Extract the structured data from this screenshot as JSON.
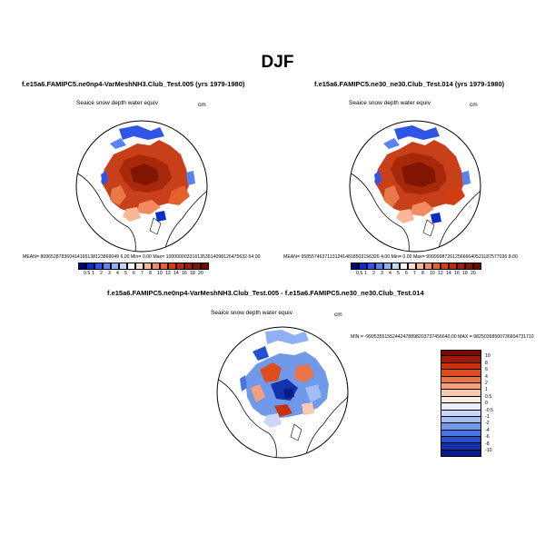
{
  "title": "DJF",
  "panel1": {
    "title": "f.e15a6.FAMIPC5.ne0np4-VarMeshNH3.Club_Test.005 (yrs 1979-1980)",
    "var_label": "Seaice snow depth water equiv",
    "units": "cm",
    "stats": "MEAN= 809652878360414165138123869049 6.00  Min=    0.00  Max= 1000000033161353514098126475632 64.00"
  },
  "panel2": {
    "title": "f.e15a6.FAMIPC5.ne30_ne30.Club_Test.014 (yrs 1979-1980)",
    "var_label": "Seaice snow depth water equiv",
    "units": "cm",
    "stats": "MEAN= 958557463711312414818503156326 4.00  Min=    0.00  Max= 9999998726125666640521187577036 8.00"
  },
  "panel3": {
    "title": "f.e15a6.FAMIPC5.ne0np4-VarMeshNH3.Club_Test.005 - f.e15a6.FAMIPC5.ne30_ne30.Club_Test.014",
    "var_label": "Seaice snow depth water equiv",
    "units": "cm",
    "stats": "MIN = -99953551552442478898203737456640.00 MAX = 98250368500736604731710"
  },
  "abs_colorbar": {
    "labels": [
      "0.5",
      "1",
      "2",
      "3",
      "4",
      "5",
      "6",
      "7",
      "8",
      "10",
      "12",
      "14",
      "16",
      "18",
      "20"
    ],
    "colors": [
      "#00007f",
      "#0a2dc8",
      "#2f55e6",
      "#5a82f0",
      "#8fb0f5",
      "#c2d5fa",
      "#ffffff",
      "#fde0cf",
      "#f8b896",
      "#f28c60",
      "#e6602e",
      "#d43d12",
      "#b82c08",
      "#9c1e04",
      "#821402",
      "#6a0a00"
    ]
  },
  "diff_colorbar": {
    "labels": [
      "10",
      "8",
      "6",
      "4",
      "2",
      "1",
      "0.5",
      "0",
      "-0.5",
      "-1",
      "-2",
      "-4",
      "-6",
      "-8",
      "-10"
    ],
    "colors": [
      "#7a0a00",
      "#a21a04",
      "#c83010",
      "#de4d1e",
      "#ec7548",
      "#f4a07c",
      "#f9c8b0",
      "#fdebe0",
      "#e8eefa",
      "#c9d8f6",
      "#a1bdf2",
      "#7199ea",
      "#4a74e0",
      "#2650cf",
      "#1232ae",
      "#061c86"
    ]
  },
  "map_colors": {
    "land": "#ffffff",
    "coast": "#000000",
    "dark_red": "#a8280a",
    "red": "#c8401a",
    "orange": "#e87a4a",
    "light_blue": "#8fb0f5",
    "blue": "#2f55e6",
    "dark_blue": "#0a1a9a"
  }
}
